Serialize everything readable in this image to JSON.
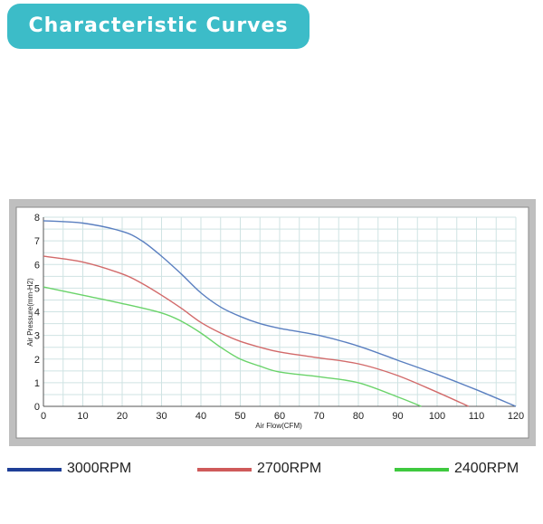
{
  "header": {
    "title": "Characteristic Curves"
  },
  "colors": {
    "title_bg": "#3cbcc8",
    "frame": "#bfbfbf",
    "grid": "#cfe3e3",
    "rpm3000": "#5a7fc0",
    "rpm2700": "#d26a6a",
    "rpm2400": "#6ad36a",
    "legend3000": "#1f3f97",
    "legend2700": "#cf5a5a",
    "legend2400": "#3fc93f"
  },
  "chart_data": {
    "type": "line",
    "title": "",
    "xlabel": "Air Flow(CFM)",
    "ylabel": "Air Pressure(mm-H2)",
    "xlim": [
      0,
      120
    ],
    "ylim": [
      0,
      8
    ],
    "xticks": [
      0,
      10,
      20,
      30,
      40,
      50,
      60,
      70,
      80,
      90,
      100,
      110,
      120
    ],
    "yticks": [
      0,
      1,
      2,
      3,
      4,
      5,
      6,
      7,
      8
    ],
    "grid": true,
    "legend_position": "bottom",
    "series": [
      {
        "name": "3000RPM",
        "color": "#5a7fc0",
        "x": [
          0,
          10,
          20,
          25,
          30,
          35,
          40,
          45,
          50,
          55,
          60,
          70,
          80,
          90,
          100,
          110,
          120
        ],
        "y": [
          7.85,
          7.75,
          7.4,
          7.0,
          6.35,
          5.6,
          4.8,
          4.2,
          3.8,
          3.5,
          3.3,
          3.0,
          2.55,
          1.95,
          1.35,
          0.7,
          0.0
        ]
      },
      {
        "name": "2700RPM",
        "color": "#d26a6a",
        "x": [
          0,
          10,
          20,
          25,
          30,
          35,
          40,
          45,
          50,
          55,
          60,
          70,
          80,
          90,
          100,
          108
        ],
        "y": [
          6.35,
          6.1,
          5.6,
          5.2,
          4.7,
          4.15,
          3.55,
          3.1,
          2.75,
          2.5,
          2.3,
          2.05,
          1.8,
          1.3,
          0.6,
          0.0
        ]
      },
      {
        "name": "2400RPM",
        "color": "#6ad36a",
        "x": [
          0,
          10,
          20,
          30,
          35,
          40,
          45,
          50,
          55,
          60,
          70,
          80,
          90,
          96
        ],
        "y": [
          5.05,
          4.7,
          4.35,
          3.95,
          3.6,
          3.1,
          2.5,
          2.0,
          1.7,
          1.45,
          1.25,
          1.0,
          0.4,
          0.0
        ]
      }
    ]
  },
  "legend": [
    {
      "label": "3000RPM",
      "color": "#1f3f97"
    },
    {
      "label": "2700RPM",
      "color": "#cf5a5a"
    },
    {
      "label": "2400RPM",
      "color": "#3fc93f"
    }
  ]
}
